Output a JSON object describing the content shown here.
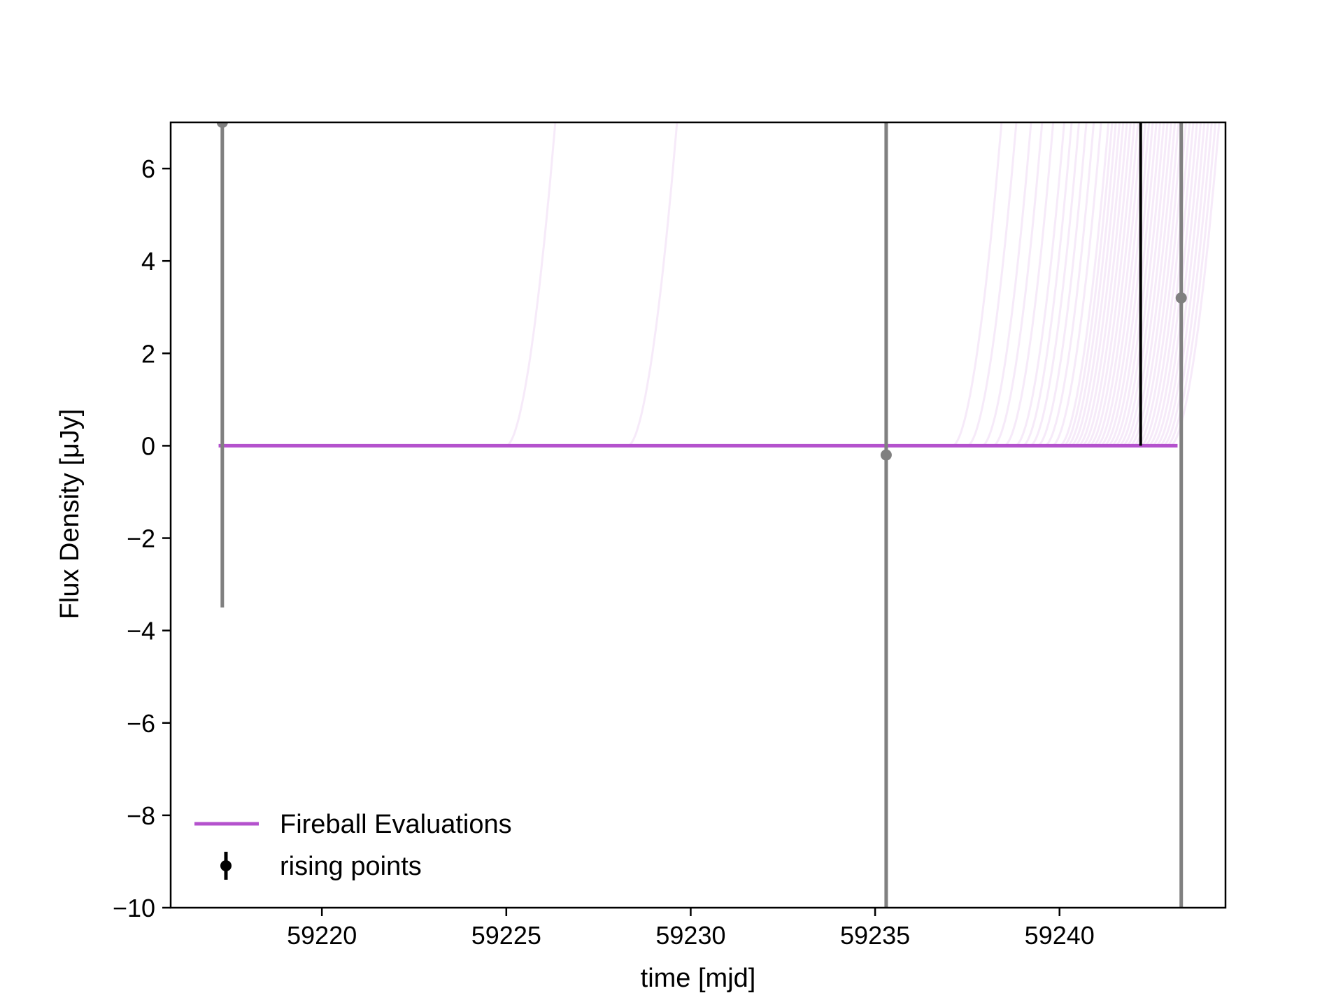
{
  "chart_data": {
    "type": "line",
    "title": "",
    "xlabel": "time [mjd]",
    "ylabel": "Flux Density [μJy]",
    "xlim": [
      59215.9,
      59244.5
    ],
    "ylim": [
      -10,
      7
    ],
    "xticks": [
      59220,
      59225,
      59230,
      59235,
      59240
    ],
    "yticks": [
      -10,
      -8,
      -6,
      -4,
      -2,
      0,
      2,
      4,
      6
    ],
    "xtick_labels": [
      "59220",
      "59225",
      "59230",
      "59235",
      "59240"
    ],
    "ytick_labels": [
      "−10",
      "−8",
      "−6",
      "−4",
      "−2",
      "0",
      "2",
      "4",
      "6"
    ],
    "grid": false,
    "legend_position": "lower-left",
    "colors": {
      "fireball": "#b452cd",
      "points": "#808080",
      "marker": "#000000"
    },
    "series": [
      {
        "name": "Fireball Evaluations",
        "kind": "model-curves",
        "baseline": {
          "x": [
            59217.2,
            59243.2
          ],
          "y": [
            0,
            0
          ]
        },
        "rise_times": [
          59225.0,
          59228.3,
          59237.1,
          59237.5,
          59237.9,
          59238.2,
          59238.5,
          59238.8,
          59239.0,
          59239.2,
          59239.4,
          59239.6,
          59239.8,
          59240.0,
          59240.1,
          59240.2,
          59240.3,
          59240.4,
          59240.5,
          59240.6,
          59240.7,
          59240.8,
          59240.9,
          59241.0,
          59241.1,
          59241.2,
          59241.3,
          59241.4,
          59241.5,
          59241.6,
          59241.7,
          59241.8,
          59241.9,
          59242.0,
          59242.1,
          59242.2,
          59242.3,
          59242.4,
          59242.5,
          59242.6,
          59242.7,
          59242.8,
          59242.9,
          59243.0
        ]
      },
      {
        "name": "rising points",
        "kind": "errorbar",
        "points": [
          {
            "x": 59217.3,
            "y": 7.0,
            "yerr_low": 10.5,
            "yerr_high": 3.0
          },
          {
            "x": 59235.3,
            "y": -0.2,
            "yerr_low": 10.0,
            "yerr_high": 8.0
          },
          {
            "x": 59243.3,
            "y": 3.2,
            "yerr_low": 14.0,
            "yerr_high": 5.0
          }
        ]
      }
    ],
    "annotations": [
      {
        "type": "vline",
        "x": 59242.2,
        "y_from": 0,
        "y_to": 7
      }
    ],
    "legend": [
      {
        "label": "Fireball Evaluations",
        "marker": "line"
      },
      {
        "label": "rising points",
        "marker": "errorbar"
      }
    ]
  }
}
